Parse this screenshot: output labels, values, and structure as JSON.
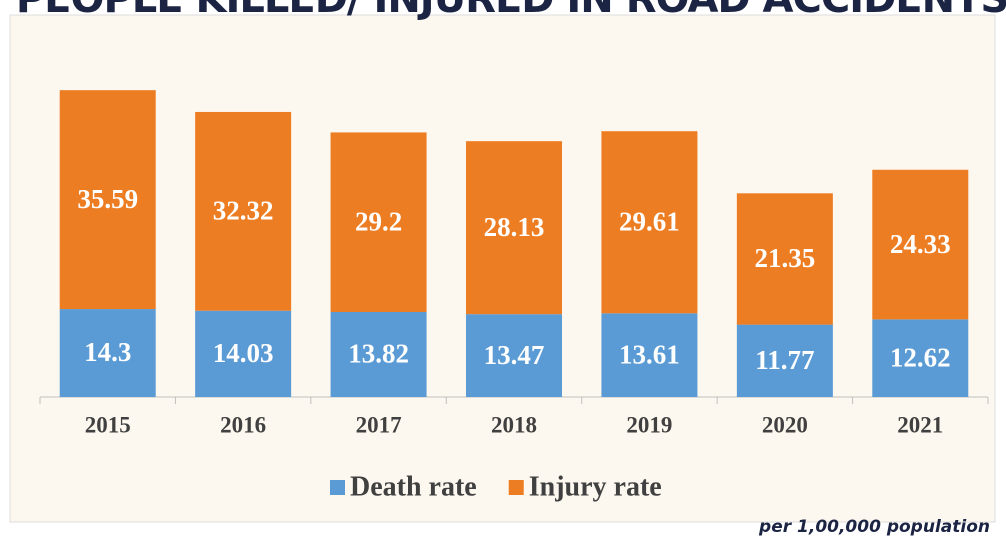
{
  "chart_data": {
    "type": "stacked_bar",
    "title": "PEOPLE KILLED/ INJURED IN ROAD ACCIDENTS",
    "categories": [
      "2015",
      "2016",
      "2017",
      "2018",
      "2019",
      "2020",
      "2021"
    ],
    "series": [
      {
        "name": "Death rate",
        "color": "#5b9bd5",
        "values": [
          14.3,
          14.03,
          13.82,
          13.47,
          13.61,
          11.77,
          12.62
        ]
      },
      {
        "name": "Injury rate",
        "color": "#ed7d22",
        "values": [
          35.59,
          32.32,
          29.2,
          28.13,
          29.61,
          21.35,
          24.33
        ]
      }
    ],
    "note": "per 1,00,000 population"
  }
}
